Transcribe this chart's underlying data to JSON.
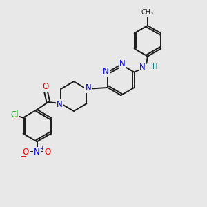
{
  "bg_color": "#e8e8e8",
  "bond_color": "#1a1a1a",
  "bond_width": 1.4,
  "atom_colors": {
    "N": "#0000ee",
    "O": "#ee0000",
    "Cl": "#00aa00",
    "H": "#007777",
    "C": "#1a1a1a"
  },
  "font_size": 8.5
}
